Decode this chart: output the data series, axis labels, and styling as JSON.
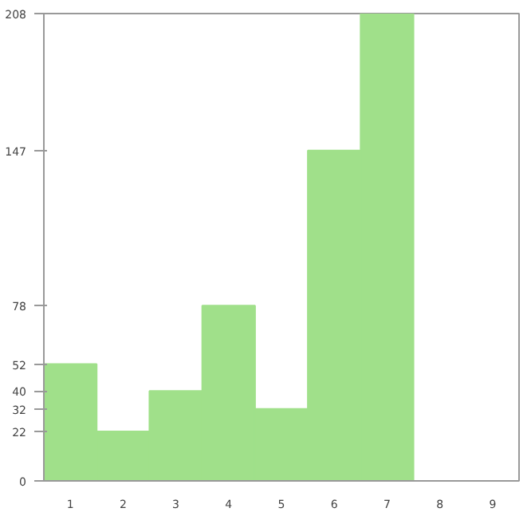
{
  "chart_data": {
    "type": "bar",
    "categories": [
      "1",
      "2",
      "3",
      "4",
      "5",
      "6",
      "7",
      "8",
      "9"
    ],
    "values": [
      52,
      22,
      40,
      78,
      32,
      147,
      208,
      0,
      0
    ],
    "color": "#a0e08a",
    "ylim": [
      0,
      208
    ],
    "yticks": [
      0,
      22,
      32,
      40,
      52,
      78,
      147,
      208
    ],
    "grid": false
  }
}
